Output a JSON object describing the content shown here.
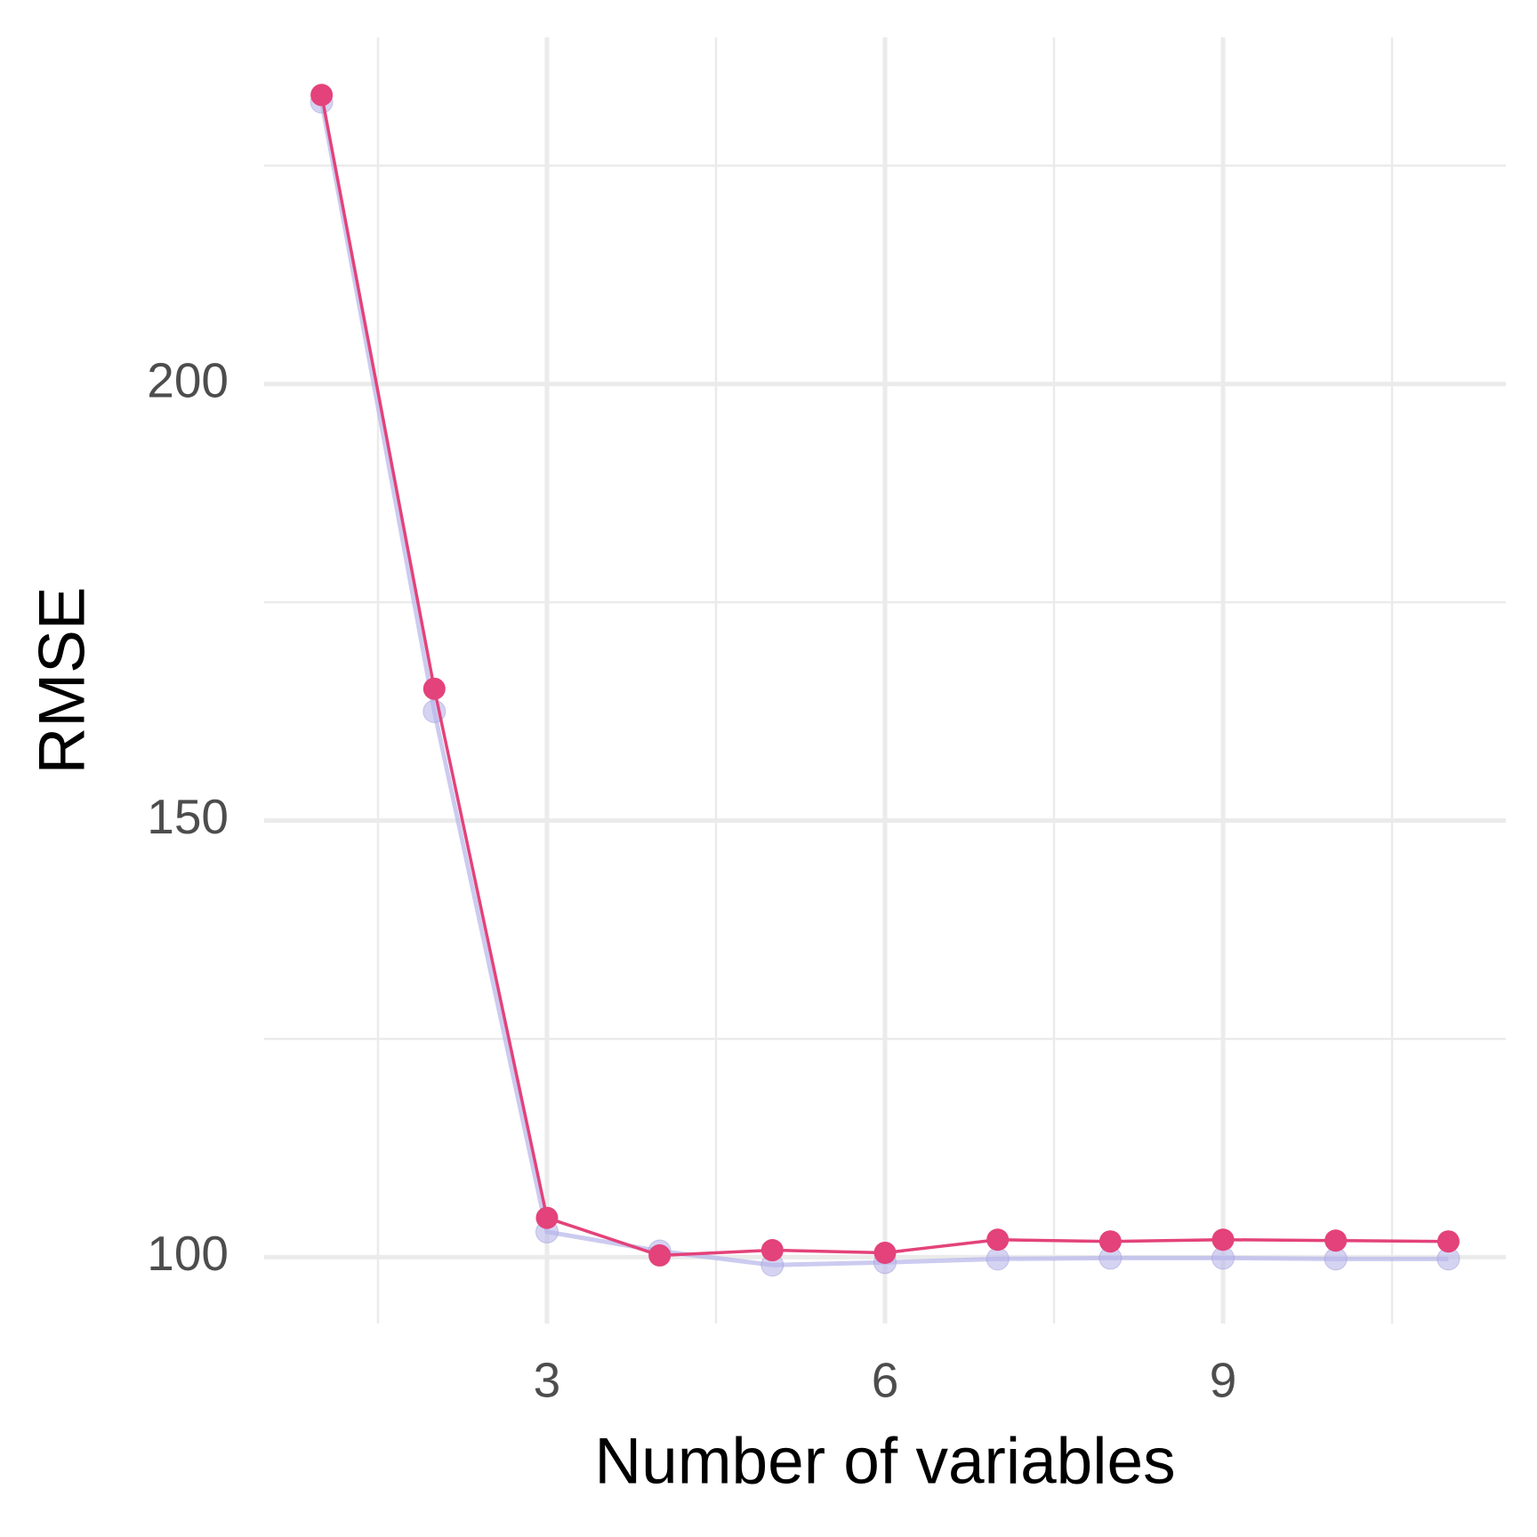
{
  "chart_data": {
    "type": "line",
    "x_label": "Number of variables",
    "y_label": "RMSE",
    "x": [
      1,
      2,
      3,
      4,
      5,
      6,
      7,
      8,
      9,
      10,
      11
    ],
    "series": [
      {
        "color": "#b7b5ea",
        "values": [
          232.3,
          162.5,
          102.9,
          100.7,
          99.1,
          99.4,
          99.8,
          99.9,
          99.9,
          99.8,
          99.8
        ]
      },
      {
        "color": "#e3427a",
        "values": [
          233.1,
          165.1,
          104.5,
          100.2,
          100.8,
          100.5,
          102.0,
          101.8,
          102.0,
          101.9,
          101.8
        ]
      }
    ],
    "xlim": [
      0.49,
      11.51
    ],
    "ylim": [
      92.4,
      239.7
    ],
    "xticks": [
      3,
      6,
      9
    ],
    "yticks": [
      100,
      150,
      200
    ],
    "minor_xticks": [
      1.5,
      4.5,
      7.5,
      10.5
    ],
    "minor_yticks": [
      125,
      175,
      225
    ],
    "grid": true
  }
}
